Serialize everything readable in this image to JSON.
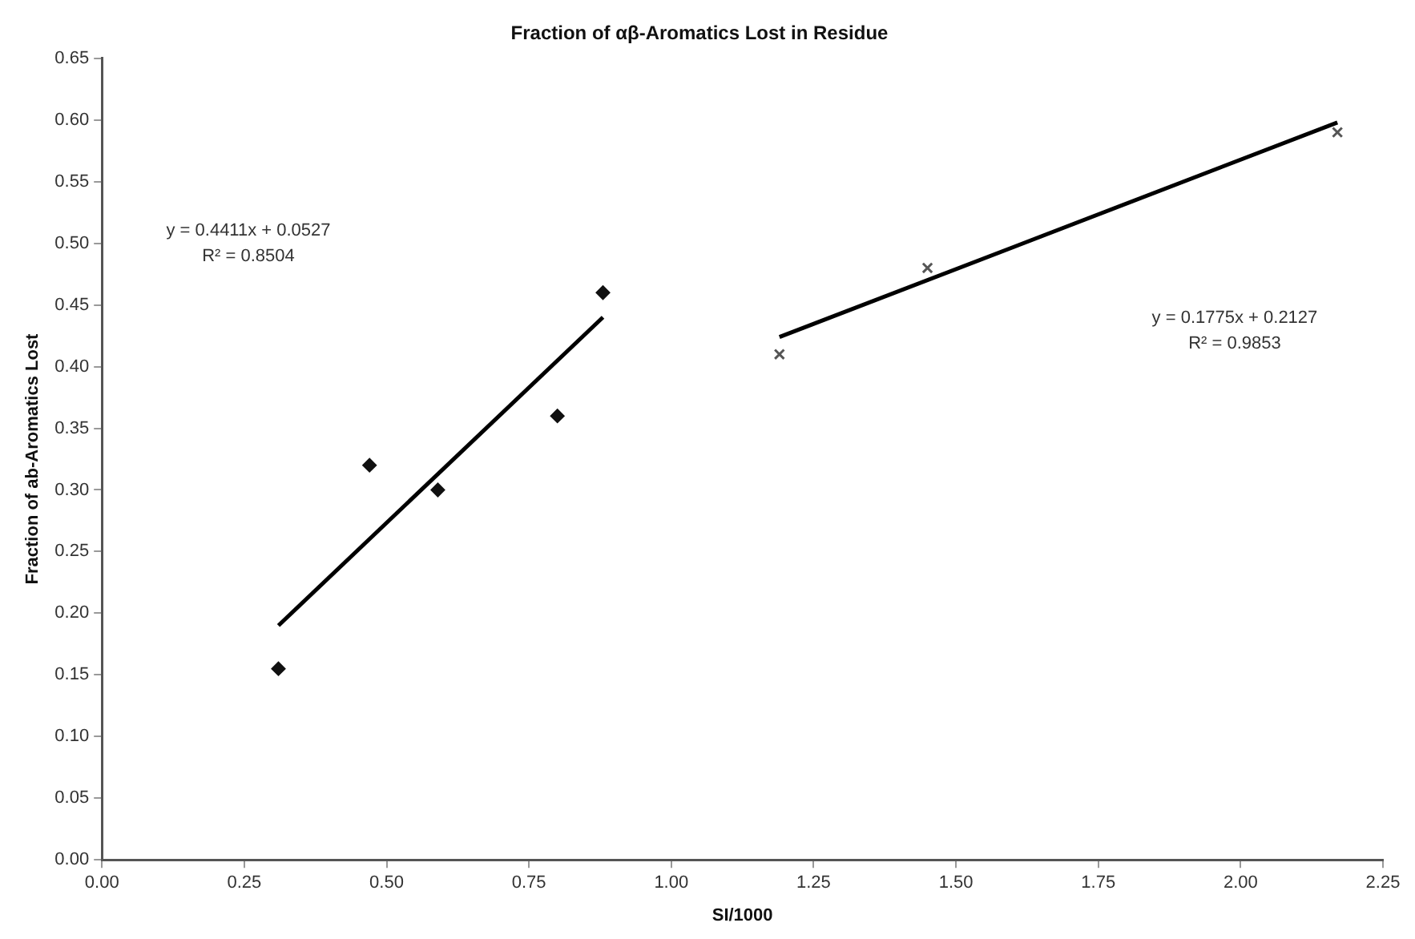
{
  "chart_data": {
    "type": "scatter",
    "title": "Fraction of αβ-Aromatics Lost in Residue",
    "xlabel": "SI/1000",
    "ylabel": "Fraction of ab-Aromatics Lost",
    "xlim": [
      0,
      2.25
    ],
    "ylim": [
      0,
      0.65
    ],
    "xticks": [
      {
        "value": 0,
        "label": "0.00"
      },
      {
        "value": 0.25,
        "label": "0.25"
      },
      {
        "value": 0.5,
        "label": "0.50"
      },
      {
        "value": 0.75,
        "label": "0.75"
      },
      {
        "value": 1,
        "label": "1.00"
      },
      {
        "value": 1.25,
        "label": "1.25"
      },
      {
        "value": 1.5,
        "label": "1.50"
      },
      {
        "value": 1.75,
        "label": "1.75"
      },
      {
        "value": 2,
        "label": "2.00"
      },
      {
        "value": 2.25,
        "label": "2.25"
      }
    ],
    "yticks": [
      {
        "value": 0,
        "label": "0.00"
      },
      {
        "value": 0.05,
        "label": "0.05"
      },
      {
        "value": 0.1,
        "label": "0.10"
      },
      {
        "value": 0.15,
        "label": "0.15"
      },
      {
        "value": 0.2,
        "label": "0.20"
      },
      {
        "value": 0.25,
        "label": "0.25"
      },
      {
        "value": 0.3,
        "label": "0.30"
      },
      {
        "value": 0.35,
        "label": "0.35"
      },
      {
        "value": 0.4,
        "label": "0.40"
      },
      {
        "value": 0.45,
        "label": "0.45"
      },
      {
        "value": 0.5,
        "label": "0.50"
      },
      {
        "value": 0.55,
        "label": "0.55"
      },
      {
        "value": 0.6,
        "label": "0.60"
      },
      {
        "value": 0.65,
        "label": "0.65"
      }
    ],
    "grid": false,
    "legend": false,
    "series": [
      {
        "type": "scatter",
        "color": "#111111",
        "marker": "diamond",
        "x": [
          0.31,
          0.47,
          0.59,
          0.8,
          0.88
        ],
        "values": [
          0.155,
          0.32,
          0.3,
          0.36,
          0.46
        ]
      },
      {
        "type": "scatter",
        "color": "#555555",
        "marker": "cross",
        "x": [
          1.19,
          1.45,
          2.17
        ],
        "values": [
          0.41,
          0.48,
          0.59
        ]
      },
      {
        "type": "line",
        "color": "#000000",
        "marker": "none",
        "line_style": "solid",
        "x": [
          0.31,
          0.88
        ],
        "values": [
          0.19,
          0.44
        ]
      },
      {
        "type": "line",
        "color": "#000000",
        "marker": "none",
        "line_style": "solid",
        "x": [
          1.19,
          2.17
        ],
        "values": [
          0.424,
          0.598
        ]
      }
    ],
    "annotations": [
      "y = 0.4411x + 0.0527",
      "R² = 0.8504",
      "y = 0.1775x + 0.2127",
      "R² = 0.9853"
    ]
  }
}
